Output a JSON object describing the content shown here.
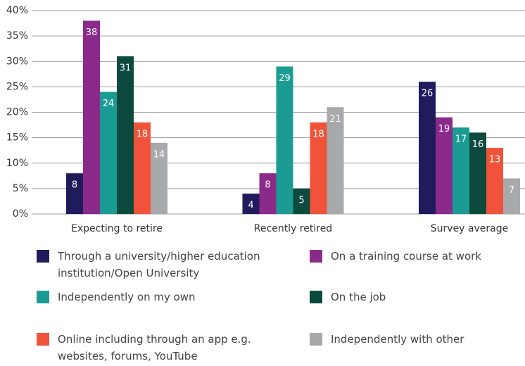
{
  "chart_data": {
    "type": "bar",
    "categories": [
      "Expecting to retire",
      "Recently retired",
      "Survey average"
    ],
    "series": [
      {
        "name": "Through a university/higher education institution/Open University",
        "color": "#1f1b5c",
        "values": [
          8,
          4,
          26
        ]
      },
      {
        "name": "On a training course at work",
        "color": "#8c2a8c",
        "values": [
          38,
          8,
          19
        ]
      },
      {
        "name": "Independently on my own",
        "color": "#1a9c94",
        "values": [
          24,
          29,
          17
        ]
      },
      {
        "name": "On the job",
        "color": "#0b4a3d",
        "values": [
          31,
          5,
          16
        ]
      },
      {
        "name": "Online including through an app e.g. websites, forums, YouTube",
        "color": "#f0533a",
        "values": [
          18,
          18,
          13
        ]
      },
      {
        "name": "Independently with other",
        "color": "#a8a9ab",
        "values": [
          14,
          21,
          7
        ]
      }
    ],
    "ylim": [
      0,
      40
    ],
    "yticks": [
      {
        "value": 0,
        "label": "0%"
      },
      {
        "value": 5,
        "label": "5%"
      },
      {
        "value": 10,
        "label": "10%"
      },
      {
        "value": 15,
        "label": "15%"
      },
      {
        "value": 20,
        "label": "20%"
      },
      {
        "value": 25,
        "label": "25%"
      },
      {
        "value": 30,
        "label": "30%"
      },
      {
        "value": 35,
        "label": "35%"
      },
      {
        "value": 40,
        "label": "40%"
      }
    ],
    "grid": true
  }
}
